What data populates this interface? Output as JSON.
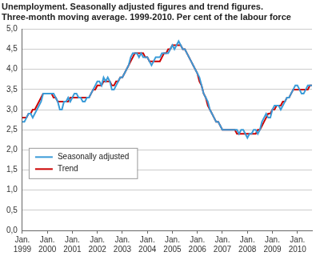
{
  "chart_data": {
    "type": "line",
    "title": [
      "Unemployment. Seasonally adjusted figures and trend figures.",
      "Three-month moving average. 1999-2010. Per cent of the labour force"
    ],
    "categories": [
      "Jan. 1999",
      null,
      null,
      null,
      null,
      null,
      null,
      null,
      null,
      null,
      null,
      null,
      "Jan. 2000",
      null,
      null,
      null,
      null,
      null,
      null,
      null,
      null,
      null,
      null,
      null,
      "Jan. 2001",
      null,
      null,
      null,
      null,
      null,
      null,
      null,
      null,
      null,
      null,
      null,
      "Jan. 2002",
      null,
      null,
      null,
      null,
      null,
      null,
      null,
      null,
      null,
      null,
      null,
      "Jan. 2003",
      null,
      null,
      null,
      null,
      null,
      null,
      null,
      null,
      null,
      null,
      null,
      "Jan. 2004",
      null,
      null,
      null,
      null,
      null,
      null,
      null,
      null,
      null,
      null,
      null,
      "Jan. 2005",
      null,
      null,
      null,
      null,
      null,
      null,
      null,
      null,
      null,
      null,
      null,
      "Jan. 2006",
      null,
      null,
      null,
      null,
      null,
      null,
      null,
      null,
      null,
      null,
      null,
      "Jan. 2007",
      null,
      null,
      null,
      null,
      null,
      null,
      null,
      null,
      null,
      null,
      null,
      "Jan. 2008",
      null,
      null,
      null,
      null,
      null,
      null,
      null,
      null,
      null,
      null,
      null,
      "Jan. 2009",
      null,
      null,
      null,
      null,
      null,
      null,
      null,
      null,
      null,
      null,
      null,
      "Jan. 2010",
      null,
      null,
      null,
      null,
      null,
      null,
      null
    ],
    "series": [
      {
        "name": "Seasonally adjusted",
        "color": "#3a9bd8",
        "values": [
          2.7,
          2.7,
          2.8,
          2.9,
          2.9,
          2.8,
          2.9,
          3.0,
          3.1,
          3.2,
          3.4,
          3.4,
          3.4,
          3.4,
          3.4,
          3.4,
          3.3,
          3.2,
          3.0,
          3.0,
          3.2,
          3.2,
          3.3,
          3.2,
          3.3,
          3.4,
          3.4,
          3.3,
          3.3,
          3.2,
          3.2,
          3.3,
          3.3,
          3.4,
          3.5,
          3.6,
          3.7,
          3.7,
          3.6,
          3.8,
          3.7,
          3.8,
          3.7,
          3.5,
          3.5,
          3.6,
          3.7,
          3.8,
          3.8,
          3.9,
          4.0,
          4.1,
          4.3,
          4.4,
          4.4,
          4.4,
          4.3,
          4.4,
          4.3,
          4.3,
          4.3,
          4.2,
          4.1,
          4.2,
          4.3,
          4.3,
          4.3,
          4.4,
          4.4,
          4.4,
          4.4,
          4.5,
          4.6,
          4.5,
          4.6,
          4.7,
          4.6,
          4.5,
          4.5,
          4.4,
          4.3,
          4.2,
          4.1,
          4.0,
          3.9,
          3.8,
          3.6,
          3.4,
          3.3,
          3.2,
          3.0,
          2.9,
          2.8,
          2.7,
          2.7,
          2.6,
          2.5,
          2.5,
          2.5,
          2.5,
          2.5,
          2.5,
          2.5,
          2.5,
          2.4,
          2.5,
          2.5,
          2.4,
          2.3,
          2.4,
          2.4,
          2.5,
          2.5,
          2.4,
          2.5,
          2.7,
          2.8,
          2.9,
          2.8,
          2.8,
          3.0,
          3.1,
          3.1,
          3.1,
          3.0,
          3.1,
          3.2,
          3.3,
          3.3,
          3.4,
          3.5,
          3.6,
          3.6,
          3.5,
          3.4,
          3.4,
          3.5,
          3.6,
          3.6,
          3.6
        ]
      },
      {
        "name": "Trend",
        "color": "#cc0000",
        "values": [
          2.8,
          2.8,
          2.8,
          2.9,
          2.9,
          3.0,
          3.0,
          3.1,
          3.2,
          3.3,
          3.4,
          3.4,
          3.4,
          3.4,
          3.4,
          3.3,
          3.3,
          3.2,
          3.2,
          3.2,
          3.2,
          3.2,
          3.2,
          3.3,
          3.3,
          3.3,
          3.3,
          3.3,
          3.3,
          3.3,
          3.3,
          3.3,
          3.3,
          3.4,
          3.5,
          3.5,
          3.6,
          3.6,
          3.6,
          3.7,
          3.7,
          3.7,
          3.7,
          3.6,
          3.6,
          3.7,
          3.7,
          3.8,
          3.8,
          3.9,
          4.0,
          4.1,
          4.2,
          4.3,
          4.4,
          4.4,
          4.4,
          4.4,
          4.4,
          4.3,
          4.3,
          4.2,
          4.2,
          4.2,
          4.2,
          4.2,
          4.2,
          4.3,
          4.4,
          4.4,
          4.5,
          4.5,
          4.6,
          4.6,
          4.6,
          4.6,
          4.6,
          4.5,
          4.5,
          4.4,
          4.3,
          4.2,
          4.1,
          4.0,
          3.9,
          3.7,
          3.6,
          3.4,
          3.3,
          3.1,
          3.0,
          2.9,
          2.8,
          2.7,
          2.7,
          2.6,
          2.5,
          2.5,
          2.5,
          2.5,
          2.5,
          2.5,
          2.5,
          2.4,
          2.4,
          2.4,
          2.4,
          2.4,
          2.4,
          2.4,
          2.4,
          2.4,
          2.4,
          2.5,
          2.5,
          2.6,
          2.7,
          2.8,
          2.9,
          2.9,
          3.0,
          3.0,
          3.1,
          3.1,
          3.1,
          3.2,
          3.2,
          3.3,
          3.3,
          3.4,
          3.5,
          3.5,
          3.5,
          3.5,
          3.5,
          3.5,
          3.5,
          3.5,
          3.6,
          3.6
        ]
      }
    ],
    "ylim": [
      0,
      5
    ],
    "yticks": [
      {
        "value": 0,
        "label": "0,0"
      },
      {
        "value": 0.5,
        "label": "0,5"
      },
      {
        "value": 1,
        "label": "1,0"
      },
      {
        "value": 1.5,
        "label": "1,5"
      },
      {
        "value": 2,
        "label": "2,0"
      },
      {
        "value": 2.5,
        "label": "2,5"
      },
      {
        "value": 3,
        "label": "3,0"
      },
      {
        "value": 3.5,
        "label": "3,5"
      },
      {
        "value": 4,
        "label": "4,0"
      },
      {
        "value": 4.5,
        "label": "4,5"
      },
      {
        "value": 5,
        "label": "5,0"
      }
    ],
    "grid": true,
    "legend": "lower left"
  }
}
